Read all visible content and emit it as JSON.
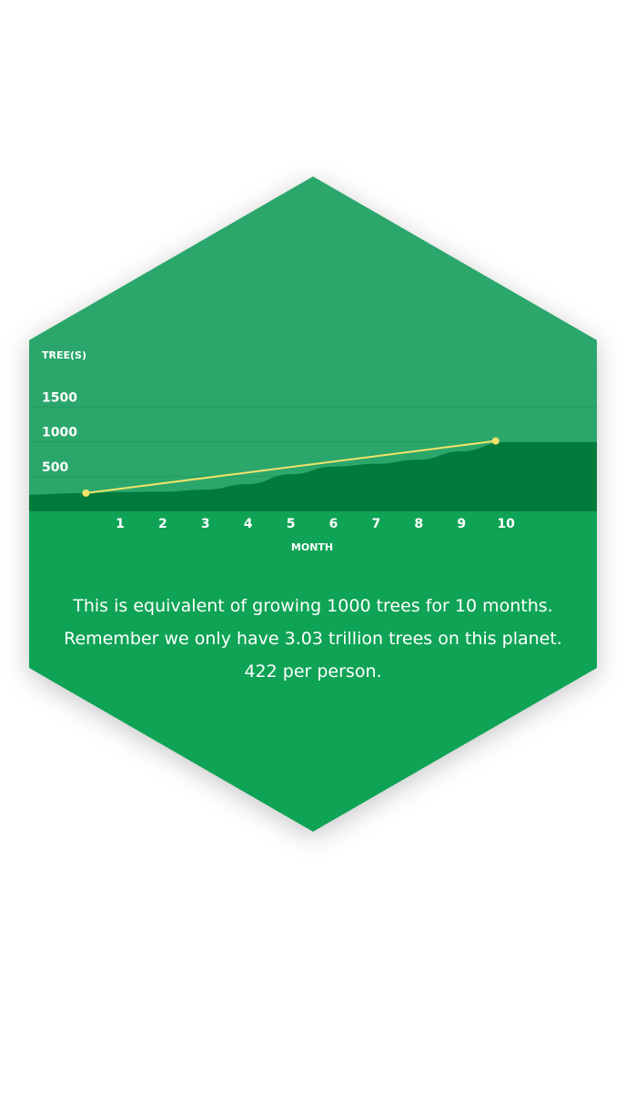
{
  "colors": {
    "hex_bottom": "#0fa355",
    "hex_top": "#2ba76c",
    "area": "#007a3d",
    "gridline": "#229a5e",
    "line": "#f3e36a",
    "text": "#ffffff"
  },
  "chart_data": {
    "type": "line",
    "title": "",
    "xlabel": "MONTH",
    "ylabel": "TREE(S)",
    "categories": [
      "1",
      "2",
      "3",
      "4",
      "5",
      "6",
      "7",
      "8",
      "9",
      "10"
    ],
    "x": [
      1,
      2,
      3,
      4,
      5,
      6,
      7,
      8,
      9,
      10
    ],
    "y_ticks": [
      "500",
      "1000",
      "1500"
    ],
    "ylim": [
      0,
      1500
    ],
    "grid": true,
    "legend": "none",
    "series": [
      {
        "type": "line",
        "x": [
          0.2,
          9.8
        ],
        "values": [
          250,
          1000
        ]
      },
      {
        "type": "area",
        "x": [
          -1.4,
          0.2,
          1,
          2,
          3,
          4,
          5,
          6,
          7,
          8,
          9,
          10,
          12.5
        ],
        "values": [
          225,
          250,
          265,
          270,
          300,
          380,
          520,
          630,
          670,
          730,
          850,
          980,
          980
        ]
      }
    ]
  },
  "caption": {
    "line1": "This is equivalent of growing 1000 trees for 10 months.",
    "line2": "Remember we only have 3.03 trillion trees on this planet.",
    "line3": "422 per person."
  }
}
